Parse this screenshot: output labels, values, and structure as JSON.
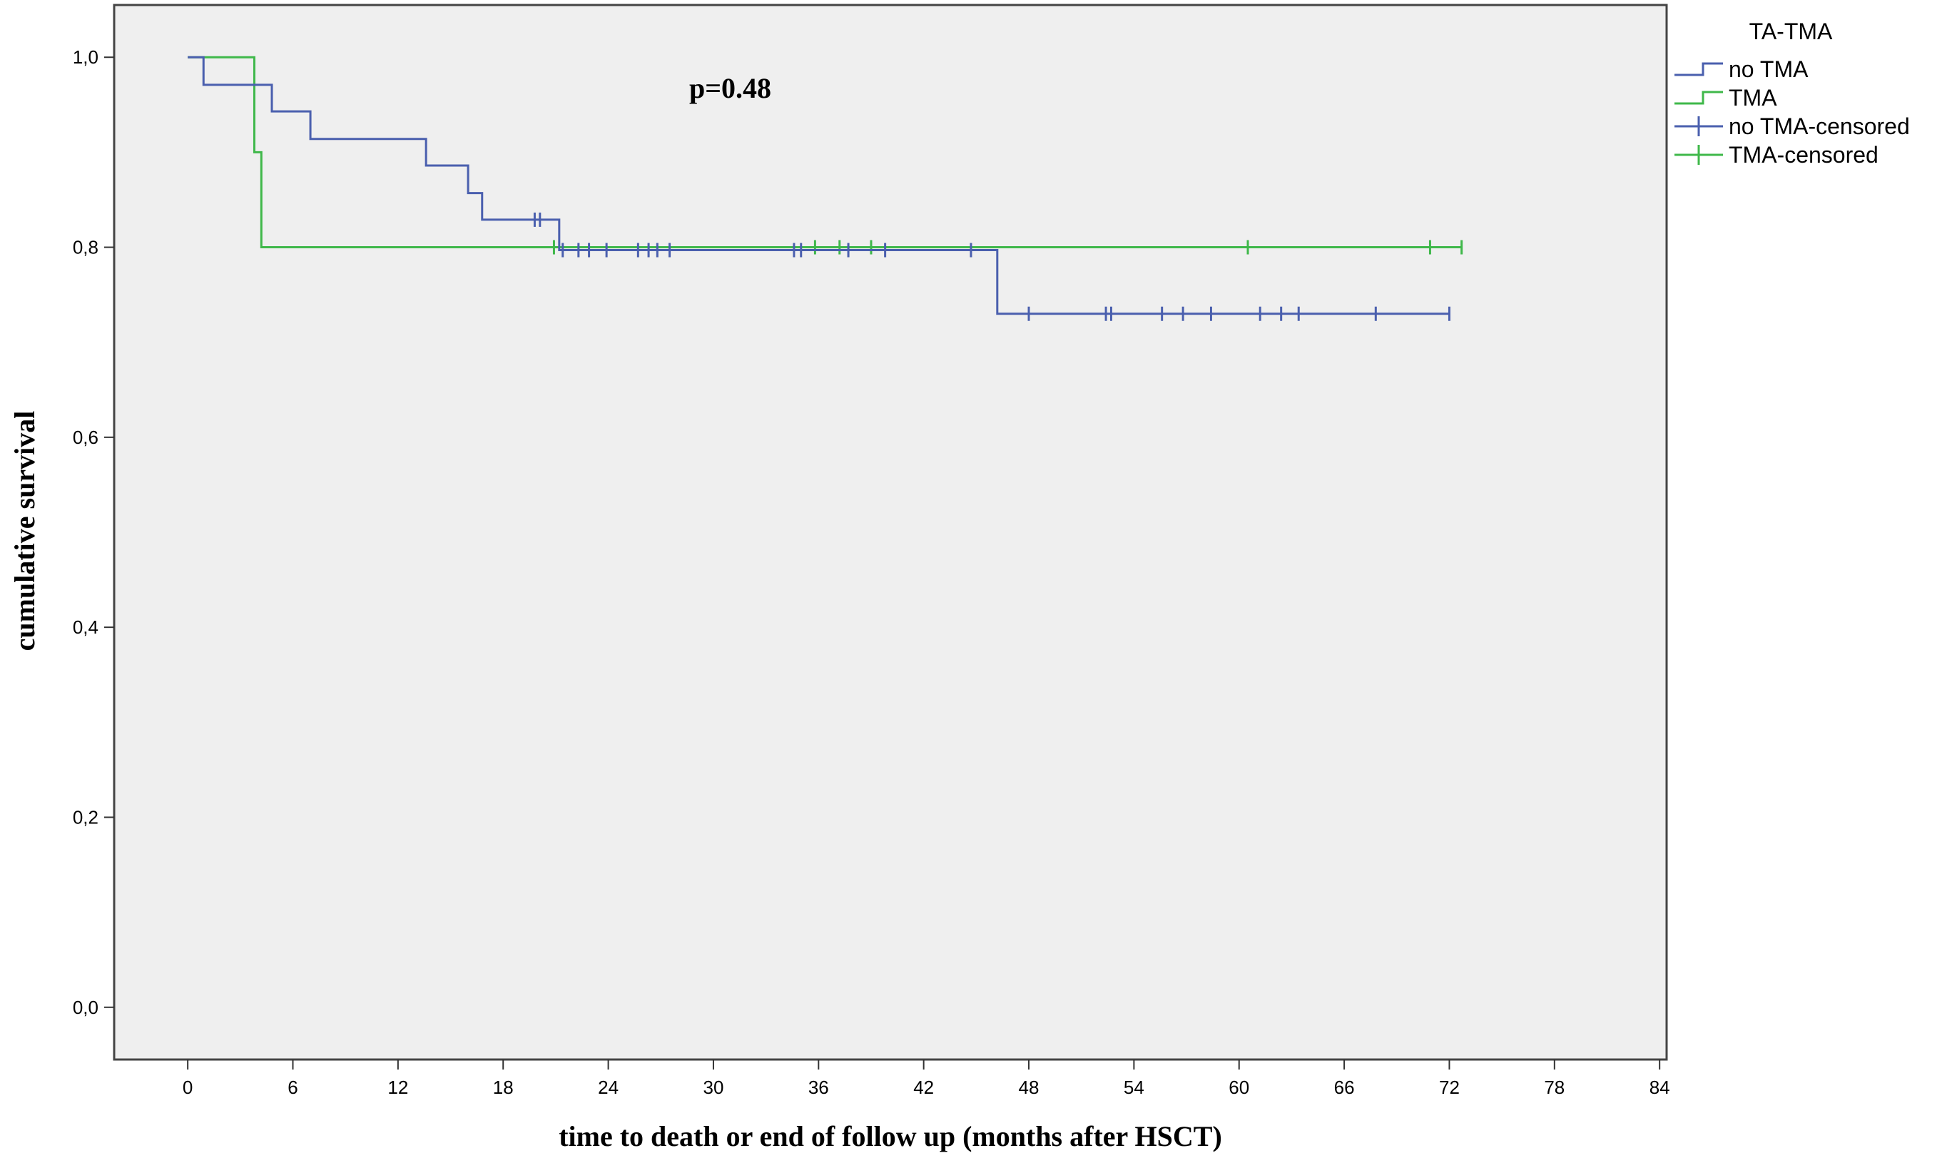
{
  "chart_data": {
    "type": "line",
    "step": true,
    "annotation": "p=0.48",
    "xlabel": "time to death or end of follow up (months after HSCT)",
    "ylabel": "cumulative survival",
    "xlim": [
      -4.2,
      84.4
    ],
    "ylim": [
      -0.055,
      1.055
    ],
    "xticks": [
      0,
      6,
      12,
      18,
      24,
      30,
      36,
      42,
      48,
      54,
      60,
      66,
      72,
      78,
      84
    ],
    "yticks": [
      0.0,
      0.2,
      0.4,
      0.6,
      0.8,
      1.0
    ],
    "ytick_labels": [
      "0,0",
      "0,2",
      "0,4",
      "0,6",
      "0,8",
      "1,0"
    ],
    "grid": false,
    "background": "#efefef",
    "legend": {
      "title": "TA-TMA",
      "placement": "outside-right",
      "entries": [
        "no TMA",
        "TMA",
        "no TMA-censored",
        "TMA-censored"
      ]
    },
    "series": [
      {
        "name": "no TMA",
        "color": "#4a5fae",
        "steps": [
          [
            0,
            1.0
          ],
          [
            0.9,
            0.971
          ],
          [
            4.8,
            0.943
          ],
          [
            7.0,
            0.914
          ],
          [
            13.6,
            0.886
          ],
          [
            16.0,
            0.857
          ],
          [
            16.8,
            0.829
          ],
          [
            21.2,
            0.797
          ],
          [
            46.2,
            0.73
          ],
          [
            72.0,
            0.73
          ]
        ],
        "censored": [
          [
            19.8,
            0.829
          ],
          [
            20.1,
            0.829
          ],
          [
            21.4,
            0.797
          ],
          [
            22.3,
            0.797
          ],
          [
            22.9,
            0.797
          ],
          [
            23.9,
            0.797
          ],
          [
            25.7,
            0.797
          ],
          [
            26.3,
            0.797
          ],
          [
            26.8,
            0.797
          ],
          [
            27.5,
            0.797
          ],
          [
            34.6,
            0.797
          ],
          [
            35.0,
            0.797
          ],
          [
            37.7,
            0.797
          ],
          [
            39.8,
            0.797
          ],
          [
            44.7,
            0.797
          ],
          [
            48.0,
            0.73
          ],
          [
            52.4,
            0.73
          ],
          [
            52.7,
            0.73
          ],
          [
            55.6,
            0.73
          ],
          [
            56.8,
            0.73
          ],
          [
            58.4,
            0.73
          ],
          [
            61.2,
            0.73
          ],
          [
            62.4,
            0.73
          ],
          [
            63.4,
            0.73
          ],
          [
            67.8,
            0.73
          ],
          [
            72.0,
            0.73
          ]
        ]
      },
      {
        "name": "TMA",
        "color": "#3fb84a",
        "steps": [
          [
            0,
            1.0
          ],
          [
            3.8,
            0.9
          ],
          [
            4.2,
            0.8
          ],
          [
            72.7,
            0.8
          ]
        ],
        "censored": [
          [
            20.9,
            0.8
          ],
          [
            35.8,
            0.8
          ],
          [
            37.2,
            0.8
          ],
          [
            39.0,
            0.8
          ],
          [
            60.5,
            0.8
          ],
          [
            70.9,
            0.8
          ],
          [
            72.7,
            0.8
          ]
        ]
      }
    ]
  }
}
